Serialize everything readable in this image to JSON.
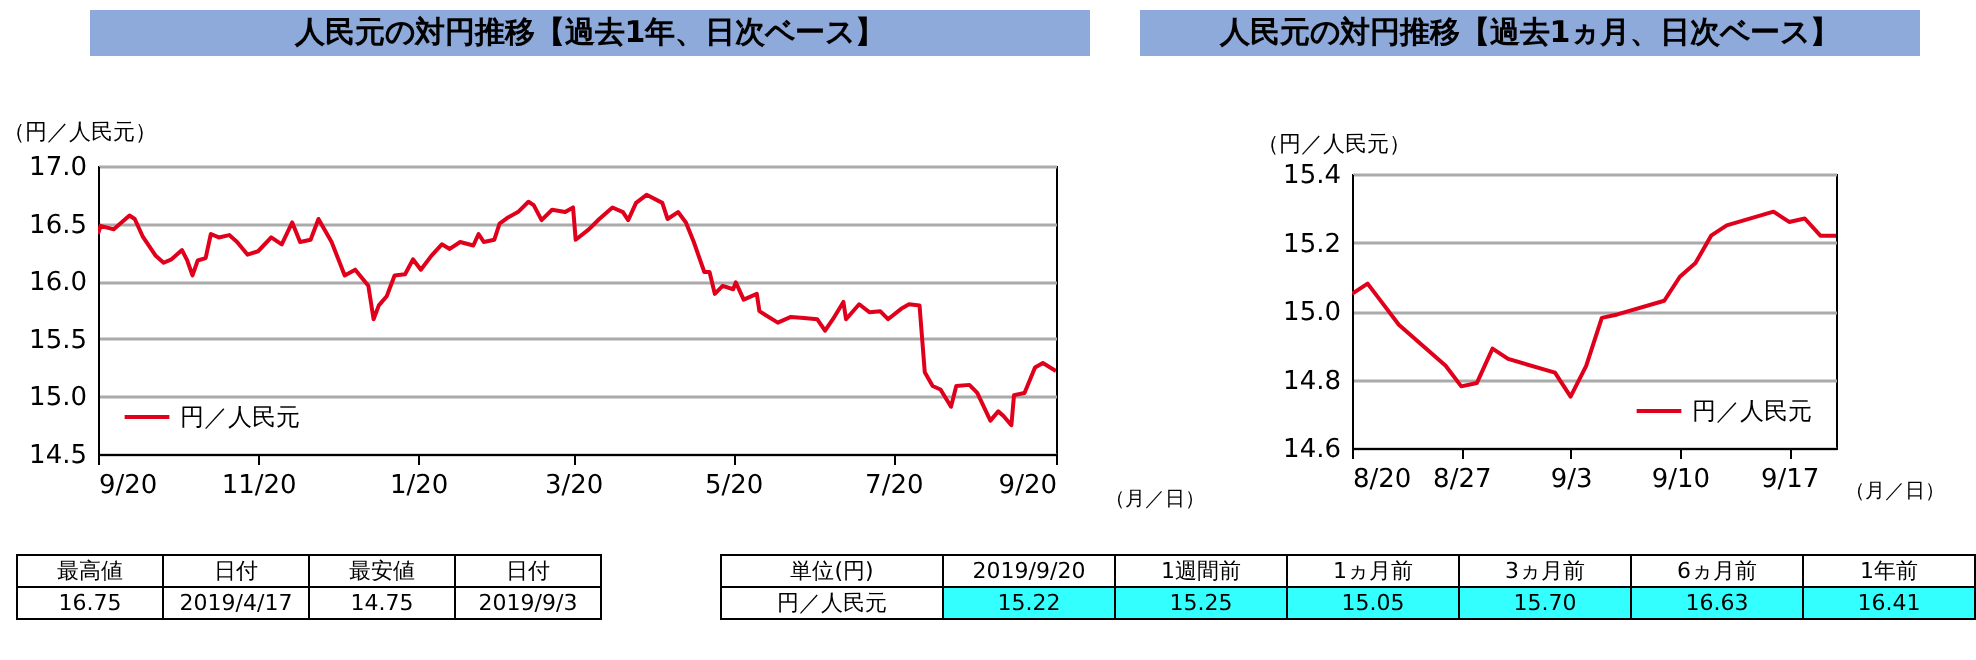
{
  "chart_data": [
    {
      "type": "line",
      "title": "人民元の対円推移【過去1年、日次ベース】",
      "ylabel": "（円／人民元）",
      "xlabel": "（月／日）",
      "x": [
        "2018-09-20",
        "2018-09-21",
        "2018-09-26",
        "2018-10-02",
        "2018-10-04",
        "2018-10-07",
        "2018-10-12",
        "2018-10-15",
        "2018-10-18",
        "2018-10-22",
        "2018-10-24",
        "2018-10-26",
        "2018-10-28",
        "2018-10-31",
        "2018-11-02",
        "2018-11-05",
        "2018-11-09",
        "2018-11-12",
        "2018-11-16",
        "2018-11-20",
        "2018-11-25",
        "2018-11-29",
        "2018-12-03",
        "2018-12-06",
        "2018-12-10",
        "2018-12-13",
        "2018-12-18",
        "2018-12-23",
        "2018-12-27",
        "2019-01-01",
        "2019-01-03",
        "2019-01-05",
        "2019-01-08",
        "2019-01-11",
        "2019-01-15",
        "2019-01-18",
        "2019-01-21",
        "2019-01-25",
        "2019-01-29",
        "2019-02-01",
        "2019-02-05",
        "2019-02-10",
        "2019-02-12",
        "2019-02-14",
        "2019-02-18",
        "2019-02-20",
        "2019-02-23",
        "2019-02-27",
        "2019-03-03",
        "2019-03-05",
        "2019-03-08",
        "2019-03-12",
        "2019-03-17",
        "2019-03-20",
        "2019-03-21",
        "2019-03-26",
        "2019-03-30",
        "2019-04-04",
        "2019-04-08",
        "2019-04-10",
        "2019-04-13",
        "2019-04-17",
        "2019-04-23",
        "2019-04-25",
        "2019-04-29",
        "2019-05-02",
        "2019-05-05",
        "2019-05-09",
        "2019-05-11",
        "2019-05-13",
        "2019-05-16",
        "2019-05-20",
        "2019-05-21",
        "2019-05-24",
        "2019-05-29",
        "2019-05-30",
        "2019-06-06",
        "2019-06-11",
        "2019-06-16",
        "2019-06-21",
        "2019-06-24",
        "2019-06-27",
        "2019-07-01",
        "2019-07-02",
        "2019-07-07",
        "2019-07-11",
        "2019-07-15",
        "2019-07-18",
        "2019-07-23",
        "2019-07-26",
        "2019-07-30",
        "2019-08-01",
        "2019-08-04",
        "2019-08-07",
        "2019-08-11",
        "2019-08-13",
        "2019-08-18",
        "2019-08-21",
        "2019-08-26",
        "2019-08-29",
        "2019-08-31",
        "2019-09-03",
        "2019-09-04",
        "2019-09-08",
        "2019-09-12",
        "2019-09-15",
        "2019-09-20"
      ],
      "series": [
        {
          "name": "円／人民元",
          "color": "#e0001b",
          "values": [
            16.41,
            16.48,
            16.45,
            16.57,
            16.54,
            16.39,
            16.22,
            16.16,
            16.19,
            16.27,
            16.18,
            16.05,
            16.18,
            16.2,
            16.41,
            16.38,
            16.4,
            16.34,
            16.23,
            16.26,
            16.38,
            16.32,
            16.51,
            16.34,
            16.36,
            16.54,
            16.34,
            16.05,
            16.1,
            15.96,
            15.67,
            15.79,
            15.87,
            16.05,
            16.06,
            16.19,
            16.1,
            16.22,
            16.32,
            16.28,
            16.34,
            16.31,
            16.41,
            16.34,
            16.36,
            16.5,
            16.55,
            16.6,
            16.69,
            16.66,
            16.53,
            16.62,
            16.6,
            16.64,
            16.36,
            16.45,
            16.54,
            16.64,
            16.6,
            16.53,
            16.68,
            16.75,
            16.68,
            16.54,
            16.6,
            16.51,
            16.34,
            16.08,
            16.08,
            15.89,
            15.96,
            15.93,
            15.99,
            15.84,
            15.89,
            15.74,
            15.64,
            15.69,
            15.68,
            15.67,
            15.57,
            15.67,
            15.82,
            15.67,
            15.8,
            15.73,
            15.74,
            15.67,
            15.76,
            15.8,
            15.79,
            15.21,
            15.09,
            15.06,
            14.91,
            15.09,
            15.1,
            15.03,
            14.79,
            14.87,
            14.83,
            14.75,
            15.01,
            15.03,
            15.25,
            15.29,
            15.22
          ]
        }
      ],
      "xlim": [
        "2018-09-20",
        "2019-09-20"
      ],
      "xticks": [
        {
          "value": "2018-09-20",
          "label": "9/20"
        },
        {
          "value": "2018-11-20",
          "label": "11/20"
        },
        {
          "value": "2019-01-20",
          "label": "1/20"
        },
        {
          "value": "2019-03-20",
          "label": "3/20"
        },
        {
          "value": "2019-05-20",
          "label": "5/20"
        },
        {
          "value": "2019-07-20",
          "label": "7/20"
        },
        {
          "value": "2019-09-20",
          "label": "9/20"
        }
      ],
      "ylim": [
        14.5,
        17
      ],
      "yticks": [
        14.5,
        {
          "value": 15,
          "label": "15.0"
        },
        15.5,
        {
          "value": 16,
          "label": "16.0"
        },
        16.5,
        {
          "value": 17,
          "label": "17.0"
        }
      ],
      "grid": "y",
      "legend": "bottom left"
    },
    {
      "type": "line",
      "title": "人民元の対円推移【過去1ヵ月、日次ベース】",
      "ylabel": "（円／人民元）",
      "xlabel": "（月／日）",
      "x": [
        "2019-08-20",
        "2019-08-21",
        "2019-08-22",
        "2019-08-23",
        "2019-08-26",
        "2019-08-27",
        "2019-08-28",
        "2019-08-29",
        "2019-08-30",
        "2019-09-02",
        "2019-09-03",
        "2019-09-04",
        "2019-09-05",
        "2019-09-06",
        "2019-09-09",
        "2019-09-10",
        "2019-09-11",
        "2019-09-12",
        "2019-09-13",
        "2019-09-16",
        "2019-09-17",
        "2019-09-18",
        "2019-09-19",
        "2019-09-20"
      ],
      "series": [
        {
          "name": "円／人民元",
          "color": "#e0001b",
          "values": [
            15.05,
            15.08,
            15.02,
            14.96,
            14.84,
            14.78,
            14.79,
            14.89,
            14.86,
            14.82,
            14.75,
            14.84,
            14.98,
            14.99,
            15.03,
            15.1,
            15.14,
            15.22,
            15.25,
            15.29,
            15.26,
            15.27,
            15.22,
            15.22
          ]
        }
      ],
      "xlim": [
        "2019-08-20",
        "2019-09-20"
      ],
      "xticks": [
        {
          "value": "2019-08-20",
          "label": "8/20"
        },
        {
          "value": "2019-08-27",
          "label": "8/27"
        },
        {
          "value": "2019-09-03",
          "label": "9/3"
        },
        {
          "value": "2019-09-10",
          "label": "9/10"
        },
        {
          "value": "2019-09-17",
          "label": "9/17"
        }
      ],
      "ylim": [
        14.6,
        15.4
      ],
      "yticks": [
        14.6,
        14.8,
        {
          "value": 15,
          "label": "15.0"
        },
        15.2,
        15.4
      ],
      "grid": "y",
      "legend": "bottom right"
    },
    {
      "type": "other",
      "categories": [
        "最高値",
        "日付",
        "最安値",
        "日付"
      ],
      "value_labels": [
        "16.75",
        "2019/4/17",
        "14.75",
        "2019/9/3"
      ]
    },
    {
      "type": "other",
      "categories": [
        "単位(円)",
        "2019/9/20",
        "1週間前",
        "1ヵ月前",
        "3ヵ月前",
        "6ヵ月前",
        "1年前"
      ],
      "value_labels": [
        "円／人民元",
        "15.22",
        "15.25",
        "15.05",
        "15.70",
        "16.63",
        "16.41"
      ],
      "colors": [
        "#ffffff",
        "#33ffff",
        "#33ffff",
        "#33ffff",
        "#33ffff",
        "#33ffff",
        "#33ffff"
      ]
    }
  ]
}
